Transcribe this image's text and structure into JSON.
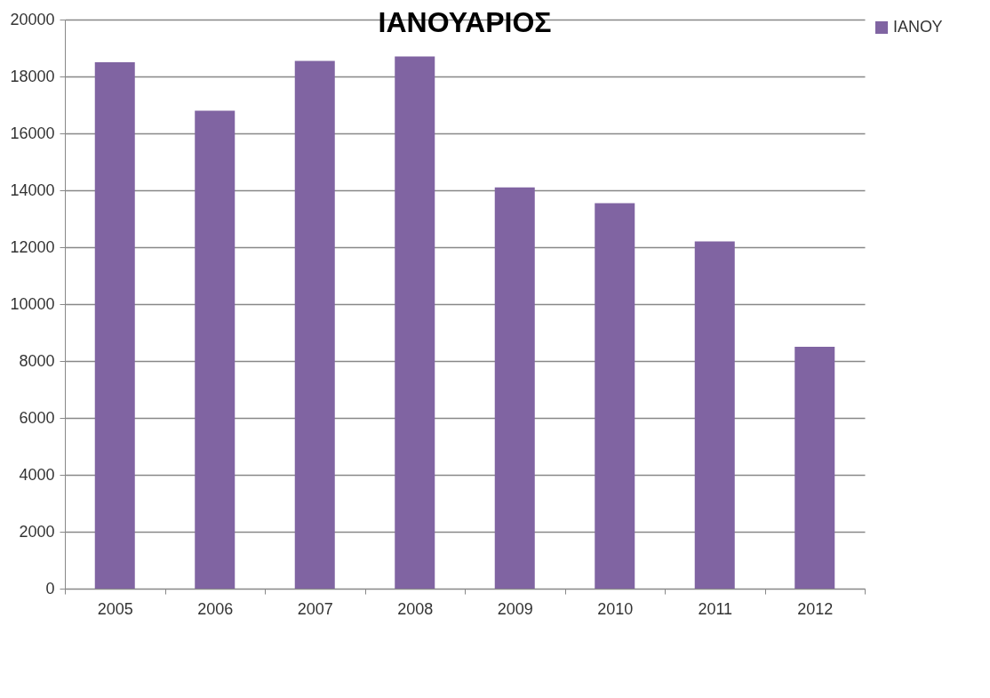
{
  "chart_data": {
    "type": "bar",
    "title": "ΙΑΝΟΥΑΡΙΟΣ",
    "categories": [
      "2005",
      "2006",
      "2007",
      "2008",
      "2009",
      "2010",
      "2011",
      "2012"
    ],
    "series": [
      {
        "name": "ΙΑΝΟΥ",
        "color": "#8064a2",
        "values": [
          18500,
          16800,
          18550,
          18700,
          14100,
          13550,
          12200,
          8500
        ]
      }
    ],
    "ylim": [
      0,
      20000
    ],
    "yticks": [
      0,
      2000,
      4000,
      6000,
      8000,
      10000,
      12000,
      14000,
      16000,
      18000,
      20000
    ],
    "grid": "y",
    "legend": "right"
  }
}
